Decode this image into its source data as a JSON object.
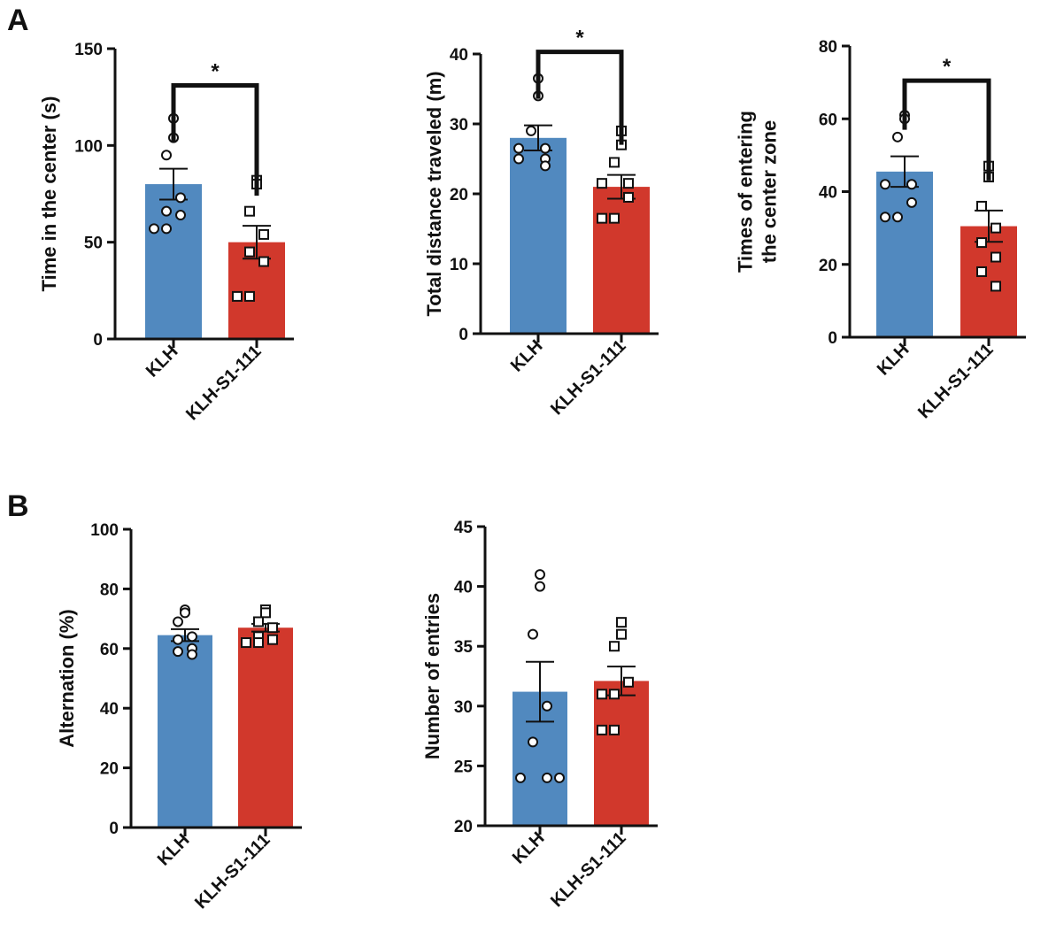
{
  "panels": [
    {
      "letter": "A"
    },
    {
      "letter": "B"
    }
  ],
  "colors": {
    "klh": "#5189bf",
    "klh_s1_111": "#d1382c",
    "axis": "#111111"
  },
  "chart_data": [
    {
      "type": "bar",
      "panel": "A",
      "ylabel": [
        "Time in the center (s)"
      ],
      "ylim": [
        0,
        150
      ],
      "yticks": [
        0,
        50,
        100,
        150
      ],
      "categories": [
        "KLH",
        "KLH-S1-111"
      ],
      "means": [
        80,
        50
      ],
      "sem": [
        8,
        8.5
      ],
      "points": [
        [
          114,
          104,
          95,
          73,
          66,
          64,
          57,
          57
        ],
        [
          82,
          80,
          66,
          54,
          45,
          40,
          22,
          22
        ]
      ],
      "significance": {
        "label": "*",
        "bracket_y": 131
      }
    },
    {
      "type": "bar",
      "panel": "A",
      "ylabel": [
        "Total distance traveled (m)"
      ],
      "ylim": [
        0,
        40
      ],
      "yticks": [
        0,
        10,
        20,
        30,
        40
      ],
      "categories": [
        "KLH",
        "KLH-S1-111"
      ],
      "means": [
        28,
        21
      ],
      "sem": [
        1.8,
        1.7
      ],
      "points": [
        [
          36.5,
          34,
          29,
          26.5,
          26.5,
          25,
          25,
          24
        ],
        [
          29,
          27,
          24.5,
          21.5,
          21.5,
          19.5,
          16.5,
          16.5
        ]
      ],
      "significance": {
        "label": "*",
        "bracket_y": 40.3
      }
    },
    {
      "type": "bar",
      "panel": "A",
      "ylabel": [
        "Times of entering",
        "the center zone"
      ],
      "ylim": [
        0,
        80
      ],
      "yticks": [
        0,
        20,
        40,
        60,
        80
      ],
      "categories": [
        "KLH",
        "KLH-S1-111"
      ],
      "means": [
        45.5,
        30.5
      ],
      "sem": [
        4.2,
        4.3
      ],
      "points": [
        [
          61,
          60,
          55,
          42,
          42,
          37,
          33,
          33
        ],
        [
          47,
          44,
          36,
          30,
          26,
          22,
          18,
          14
        ]
      ],
      "significance": {
        "label": "*",
        "bracket_y": 70.5
      }
    },
    {
      "type": "bar",
      "panel": "B",
      "ylabel": [
        "Alternation (%)"
      ],
      "ylim": [
        0,
        100
      ],
      "yticks": [
        0,
        20,
        40,
        60,
        80,
        100
      ],
      "categories": [
        "KLH",
        "KLH-S1-111"
      ],
      "means": [
        64.5,
        67
      ],
      "sem": [
        2,
        1.3
      ],
      "points": [
        [
          73,
          72,
          69,
          64,
          63,
          60,
          59,
          58
        ],
        [
          73,
          72,
          69,
          67,
          64,
          63,
          62,
          62
        ]
      ],
      "significance": null
    },
    {
      "type": "bar",
      "panel": "B",
      "ylabel": [
        "Number of entries"
      ],
      "ylim": [
        20,
        45
      ],
      "yticks": [
        20,
        25,
        30,
        35,
        40,
        45
      ],
      "categories": [
        "KLH",
        "KLH-S1-111"
      ],
      "means": [
        31.2,
        32.1
      ],
      "sem": [
        2.5,
        1.2
      ],
      "points": [
        [
          41,
          40,
          36,
          30,
          27,
          24,
          24,
          24
        ],
        [
          37,
          36,
          35,
          32,
          31,
          31,
          28,
          28
        ]
      ],
      "significance": null
    }
  ]
}
